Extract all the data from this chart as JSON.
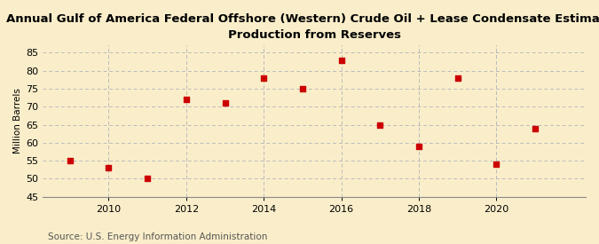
{
  "title_line1": "Annual Gulf of America Federal Offshore (Western) Crude Oil + Lease Condensate Estimated",
  "title_line2": "Production from Reserves",
  "ylabel": "Million Barrels",
  "source": "Source: U.S. Energy Information Administration",
  "x": [
    2009,
    2010,
    2011,
    2012,
    2013,
    2014,
    2015,
    2016,
    2017,
    2018,
    2019,
    2020,
    2021
  ],
  "y": [
    55.0,
    53.0,
    50.0,
    72.0,
    71.0,
    78.0,
    75.0,
    83.0,
    65.0,
    59.0,
    78.0,
    54.0,
    64.0
  ],
  "ylim": [
    45,
    87
  ],
  "yticks": [
    45,
    50,
    55,
    60,
    65,
    70,
    75,
    80,
    85
  ],
  "xlim": [
    2008.3,
    2022.3
  ],
  "xticks": [
    2010,
    2012,
    2014,
    2016,
    2018,
    2020
  ],
  "marker_color": "#cc0000",
  "marker_size": 22,
  "background_color": "#faeeca",
  "grid_color": "#bbbbbb",
  "title_fontsize": 9.5,
  "axis_fontsize": 8,
  "source_fontsize": 7.5,
  "ylabel_fontsize": 7.5
}
